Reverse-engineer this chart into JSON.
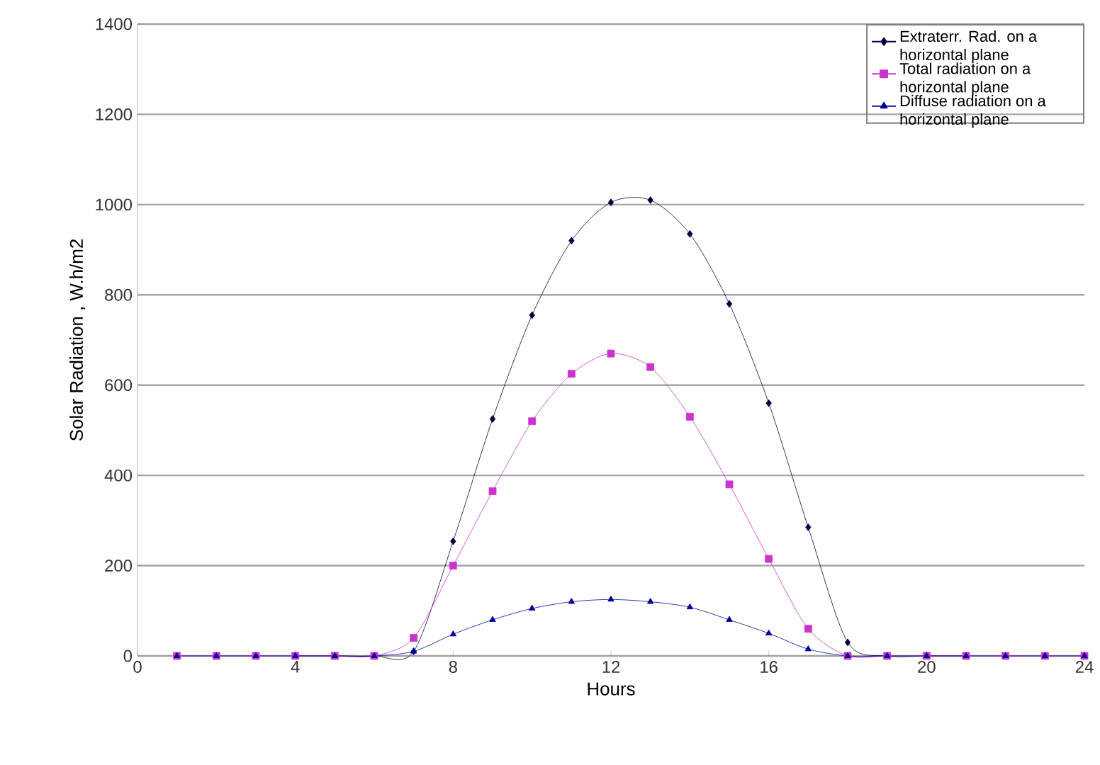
{
  "chart_data": {
    "type": "line",
    "xlabel": "Hours",
    "ylabel": "Solar Radiation , W.h/m2",
    "x": [
      1,
      2,
      3,
      4,
      5,
      6,
      7,
      8,
      9,
      10,
      11,
      12,
      13,
      14,
      15,
      16,
      17,
      18,
      19,
      20,
      21,
      22,
      23,
      24
    ],
    "series": [
      {
        "name": "Extraterr. Rad. on a horizontal plane",
        "color": "#000040",
        "marker": "diamond",
        "values": [
          null,
          null,
          null,
          0,
          0,
          0,
          10,
          254,
          525,
          755,
          920,
          1005,
          1010,
          935,
          780,
          560,
          285,
          30,
          0,
          0,
          0,
          null,
          null,
          null
        ]
      },
      {
        "name": "Total radiation  on a horizontal plane",
        "color": "#cc33cc",
        "marker": "square",
        "values": [
          0,
          0,
          0,
          0,
          0,
          0,
          40,
          200,
          365,
          520,
          625,
          670,
          640,
          530,
          380,
          215,
          60,
          0,
          0,
          0,
          0,
          0,
          0,
          0
        ]
      },
      {
        "name": "Diffuse radiation on a horizontal plane",
        "color": "#000099",
        "marker": "triangle",
        "values": [
          0,
          0,
          0,
          0,
          0,
          0,
          10,
          48,
          80,
          105,
          120,
          125,
          120,
          108,
          80,
          50,
          15,
          0,
          0,
          0,
          0,
          0,
          0,
          0
        ]
      }
    ],
    "xlim": [
      0,
      24
    ],
    "xticks": [
      0,
      4,
      8,
      12,
      16,
      20,
      24
    ],
    "ylim": [
      0,
      1400
    ],
    "yticks": [
      0,
      200,
      400,
      600,
      800,
      1000,
      1200,
      1400
    ],
    "grid": "y",
    "legend": "top right",
    "line_style": "solid"
  }
}
